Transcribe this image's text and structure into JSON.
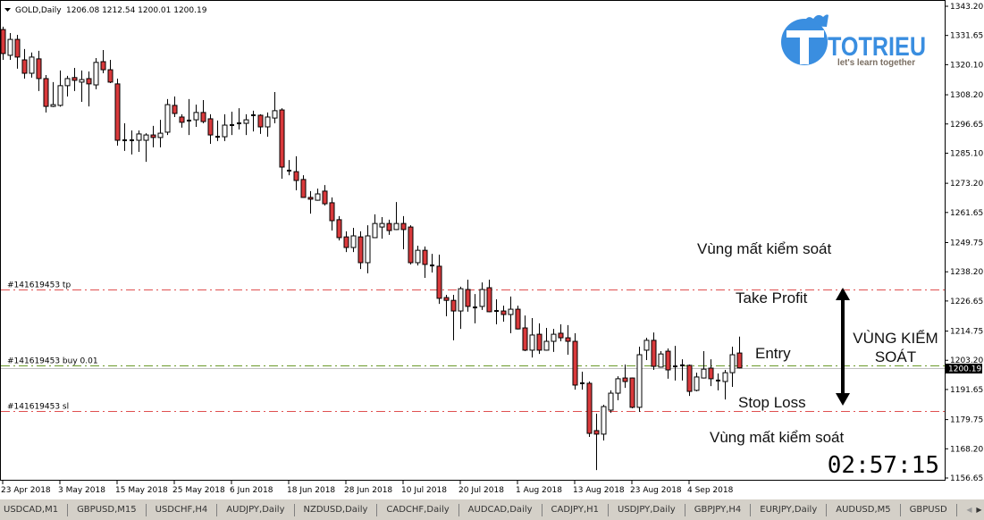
{
  "header": {
    "symbol": "GOLD,Daily",
    "ohlc": "1206.08 1212.54 1200.01 1200.19"
  },
  "logo": {
    "brand": "TOTRIEU",
    "tagline": "let's learn together",
    "color": "#3a8ee0"
  },
  "order_lines": {
    "tp": {
      "label": "#141619453 tp",
      "price": 1231.2,
      "color": "#e05050"
    },
    "entry": {
      "label": "#141619453 buy 0.01",
      "price": 1201.2,
      "color": "#6a9a2a"
    },
    "sl": {
      "label": "#141619453 sl",
      "price": 1183.1,
      "color": "#e05050"
    }
  },
  "current_price": {
    "label": "1200.19",
    "value": 1200.19
  },
  "annotations": {
    "upper_zone": "Vùng mất kiểm soát",
    "take_profit": "Take Profit",
    "entry": "Entry",
    "stop_loss": "Stop Loss",
    "lower_zone": "Vùng mất kiểm soát",
    "control_zone_line1": "VÙNG KIỂM",
    "control_zone_line2": "SOÁT"
  },
  "timer": "02:57:15",
  "tabs": [
    "USDCAD,M1",
    "GBPUSD,M15",
    "USDCHF,H4",
    "AUDJPY,Daily",
    "NZDUSD,Daily",
    "CADCHF,Daily",
    "AUDCAD,Daily",
    "CADJPY,H1",
    "USDJPY,Daily",
    "GBPJPY,H4",
    "EURJPY,Daily",
    "AUDUSD,M5",
    "GBPUSD"
  ],
  "chart_data": {
    "type": "candlestick",
    "title": "GOLD,Daily",
    "ylim": [
      1156.65,
      1343.2
    ],
    "yticks": [
      "1343.20",
      "1331.65",
      "1320.10",
      "1308.20",
      "1296.65",
      "1285.10",
      "1273.20",
      "1261.65",
      "1249.75",
      "1238.20",
      "1226.65",
      "1214.75",
      "1203.20",
      "1191.65",
      "1179.75",
      "1168.20",
      "1156.65"
    ],
    "xticks": [
      "23 Apr 2018",
      "3 May 2018",
      "15 May 2018",
      "25 May 2018",
      "6 Jun 2018",
      "18 Jun 2018",
      "28 Jun 2018",
      "10 Jul 2018",
      "20 Jul 2018",
      "1 Aug 2018",
      "13 Aug 2018",
      "23 Aug 2018",
      "4 Sep 2018"
    ],
    "grid": false,
    "up_color": "#ffffff",
    "down_color": "#d9393b",
    "ohlc": [
      [
        1334.0,
        1335.1,
        1322.0,
        1324.5
      ],
      [
        1323.8,
        1332.6,
        1322.0,
        1330.1
      ],
      [
        1330.1,
        1331.9,
        1318.5,
        1323.1
      ],
      [
        1322.0,
        1326.3,
        1314.6,
        1316.7
      ],
      [
        1316.7,
        1324.9,
        1315.0,
        1323.1
      ],
      [
        1322.4,
        1325.6,
        1309.7,
        1314.6
      ],
      [
        1314.6,
        1316.0,
        1301.2,
        1303.6
      ],
      [
        1303.6,
        1313.2,
        1303.3,
        1304.3
      ],
      [
        1304.0,
        1317.8,
        1303.5,
        1311.8
      ],
      [
        1311.8,
        1315.7,
        1307.5,
        1314.6
      ],
      [
        1315.0,
        1318.8,
        1309.7,
        1313.9
      ],
      [
        1313.2,
        1317.8,
        1305.4,
        1314.2
      ],
      [
        1314.6,
        1317.4,
        1303.6,
        1312.5
      ],
      [
        1312.1,
        1322.7,
        1310.4,
        1321.0
      ],
      [
        1321.3,
        1325.9,
        1316.7,
        1318.1
      ],
      [
        1318.1,
        1322.0,
        1312.8,
        1313.2
      ],
      [
        1312.5,
        1314.6,
        1288.1,
        1290.2
      ],
      [
        1290.2,
        1296.9,
        1286.0,
        1290.0
      ],
      [
        1290.2,
        1294.1,
        1284.6,
        1290.0
      ],
      [
        1290.2,
        1294.1,
        1285.6,
        1292.7
      ],
      [
        1290.2,
        1293.0,
        1281.7,
        1292.3
      ],
      [
        1292.3,
        1295.9,
        1287.4,
        1291.3
      ],
      [
        1291.3,
        1298.3,
        1287.4,
        1293.0
      ],
      [
        1293.4,
        1306.5,
        1292.3,
        1304.3
      ],
      [
        1304.0,
        1307.5,
        1299.4,
        1300.8
      ],
      [
        1299.4,
        1300.5,
        1295.2,
        1297.3
      ],
      [
        1298.0,
        1306.5,
        1292.3,
        1298.0
      ],
      [
        1298.3,
        1304.3,
        1295.5,
        1301.2
      ],
      [
        1301.2,
        1306.1,
        1296.9,
        1297.6
      ],
      [
        1298.7,
        1300.5,
        1288.8,
        1292.3
      ],
      [
        1291.6,
        1298.0,
        1289.9,
        1291.6
      ],
      [
        1291.6,
        1300.5,
        1289.9,
        1296.2
      ],
      [
        1296.2,
        1301.5,
        1292.3,
        1296.2
      ],
      [
        1296.9,
        1302.9,
        1294.5,
        1296.9
      ],
      [
        1296.9,
        1300.5,
        1292.3,
        1298.3
      ],
      [
        1300.1,
        1301.9,
        1293.7,
        1300.1
      ],
      [
        1300.1,
        1300.5,
        1292.7,
        1295.5
      ],
      [
        1295.5,
        1301.2,
        1291.6,
        1299.4
      ],
      [
        1299.0,
        1309.3,
        1296.9,
        1301.9
      ],
      [
        1302.2,
        1302.9,
        1275.0,
        1279.6
      ],
      [
        1278.2,
        1282.4,
        1276.4,
        1278.2
      ],
      [
        1277.8,
        1283.9,
        1270.4,
        1274.3
      ],
      [
        1274.7,
        1276.4,
        1267.4,
        1267.6
      ],
      [
        1267.6,
        1270.1,
        1261.2,
        1266.9
      ],
      [
        1266.5,
        1271.1,
        1266.3,
        1269.0
      ],
      [
        1270.1,
        1272.5,
        1264.4,
        1265.1
      ],
      [
        1265.5,
        1267.6,
        1254.5,
        1258.4
      ],
      [
        1258.8,
        1260.2,
        1250.6,
        1251.7
      ],
      [
        1252.0,
        1254.2,
        1246.0,
        1247.8
      ],
      [
        1247.8,
        1255.6,
        1246.0,
        1252.4
      ],
      [
        1252.0,
        1254.2,
        1239.3,
        1241.8
      ],
      [
        1241.8,
        1256.6,
        1237.6,
        1252.4
      ],
      [
        1251.7,
        1260.9,
        1251.5,
        1257.3
      ],
      [
        1255.9,
        1259.8,
        1251.3,
        1257.3
      ],
      [
        1257.3,
        1258.8,
        1252.8,
        1254.5
      ],
      [
        1254.9,
        1265.8,
        1254.7,
        1257.3
      ],
      [
        1257.3,
        1260.2,
        1247.1,
        1254.9
      ],
      [
        1255.9,
        1256.6,
        1241.1,
        1241.8
      ],
      [
        1241.8,
        1248.5,
        1240.7,
        1246.7
      ],
      [
        1246.7,
        1248.2,
        1235.8,
        1241.1
      ],
      [
        1240.7,
        1245.3,
        1237.9,
        1240.7
      ],
      [
        1240.4,
        1245.0,
        1225.5,
        1227.7
      ],
      [
        1228.0,
        1229.1,
        1220.6,
        1226.9
      ],
      [
        1226.9,
        1229.1,
        1211.1,
        1222.7
      ],
      [
        1222.7,
        1232.3,
        1215.6,
        1231.5
      ],
      [
        1231.2,
        1235.1,
        1222.4,
        1224.5
      ],
      [
        1224.1,
        1229.4,
        1217.8,
        1224.1
      ],
      [
        1224.5,
        1234.0,
        1223.1,
        1231.2
      ],
      [
        1231.9,
        1235.1,
        1222.2,
        1222.4
      ],
      [
        1222.7,
        1227.3,
        1217.4,
        1222.7
      ],
      [
        1222.7,
        1224.8,
        1218.5,
        1221.3
      ],
      [
        1221.3,
        1228.4,
        1213.9,
        1223.4
      ],
      [
        1223.4,
        1224.8,
        1215.4,
        1215.6
      ],
      [
        1216.0,
        1220.9,
        1206.8,
        1207.2
      ],
      [
        1207.2,
        1219.9,
        1204.3,
        1213.2
      ],
      [
        1213.5,
        1217.8,
        1205.7,
        1207.2
      ],
      [
        1207.2,
        1216.0,
        1207.0,
        1210.7
      ],
      [
        1210.7,
        1215.6,
        1206.5,
        1213.5
      ],
      [
        1213.9,
        1217.4,
        1210.7,
        1212.1
      ],
      [
        1212.1,
        1217.1,
        1205.4,
        1210.7
      ],
      [
        1210.7,
        1213.9,
        1191.6,
        1193.4
      ],
      [
        1194.1,
        1198.7,
        1191.6,
        1194.1
      ],
      [
        1194.1,
        1194.8,
        1172.9,
        1174.3
      ],
      [
        1175.4,
        1182.1,
        1159.8,
        1174.0
      ],
      [
        1174.0,
        1185.6,
        1171.5,
        1184.9
      ],
      [
        1183.5,
        1191.3,
        1182.4,
        1190.2
      ],
      [
        1190.2,
        1196.9,
        1187.4,
        1195.9
      ],
      [
        1196.2,
        1201.5,
        1192.3,
        1194.8
      ],
      [
        1196.2,
        1196.4,
        1184.2,
        1184.6
      ],
      [
        1184.6,
        1208.6,
        1182.8,
        1205.4
      ],
      [
        1207.2,
        1212.1,
        1203.3,
        1211.1
      ],
      [
        1211.1,
        1214.2,
        1199.4,
        1200.8
      ],
      [
        1200.5,
        1206.8,
        1200.3,
        1205.7
      ],
      [
        1206.8,
        1207.9,
        1195.9,
        1199.4
      ],
      [
        1200.8,
        1208.9,
        1195.2,
        1200.8
      ],
      [
        1201.2,
        1203.6,
        1195.2,
        1201.2
      ],
      [
        1201.2,
        1201.5,
        1189.1,
        1190.9
      ],
      [
        1191.3,
        1198.3,
        1190.9,
        1196.6
      ],
      [
        1196.2,
        1206.8,
        1196.0,
        1199.7
      ],
      [
        1200.1,
        1203.6,
        1193.0,
        1195.9
      ],
      [
        1195.2,
        1198.0,
        1191.3,
        1195.2
      ],
      [
        1194.8,
        1199.4,
        1187.7,
        1198.3
      ],
      [
        1198.3,
        1208.6,
        1192.7,
        1205.4
      ],
      [
        1206.08,
        1212.54,
        1200.01,
        1200.19
      ]
    ]
  }
}
